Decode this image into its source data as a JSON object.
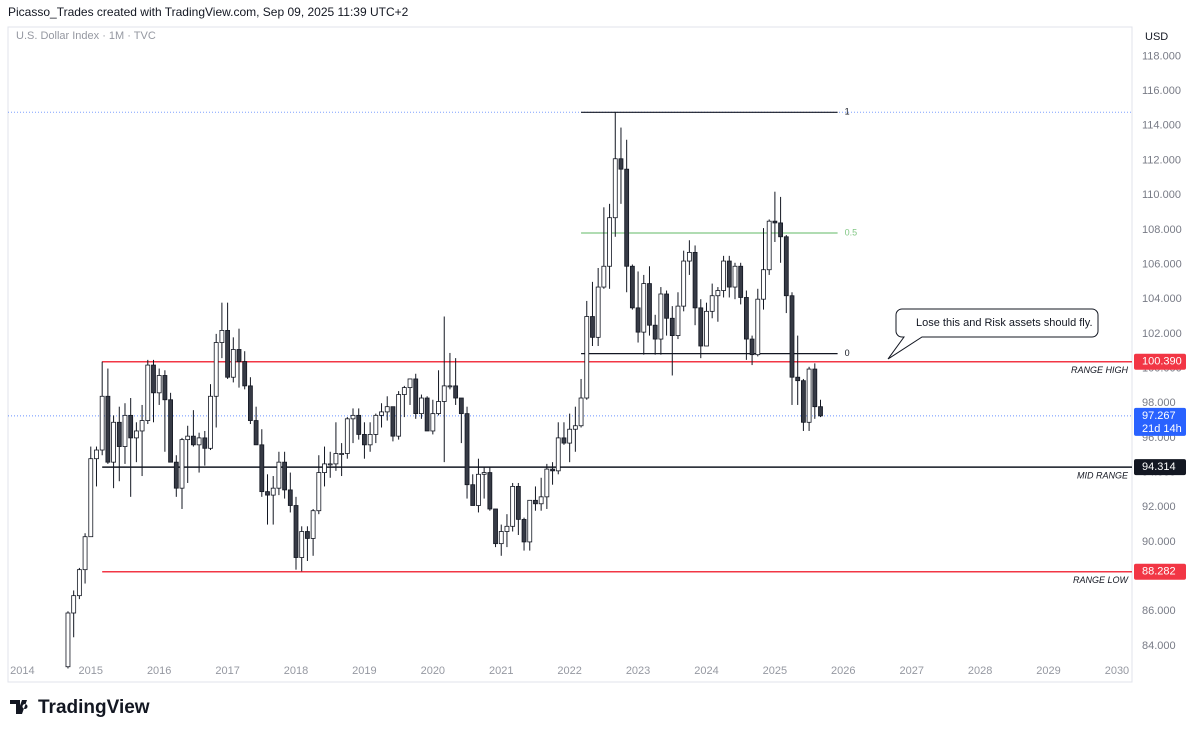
{
  "chart_data": {
    "type": "candlestick",
    "title": "Picasso_Trades created with TradingView.com, Sep 09, 2025 11:39 UTC+2",
    "subtitle": "U.S. Dollar Index · 1M · TVC",
    "currency": "USD",
    "brand": "TradingView",
    "x": [
      "2014-09",
      "2014-10",
      "2014-11",
      "2014-12",
      "2015-01",
      "2015-02",
      "2015-03",
      "2015-04",
      "2015-05",
      "2015-06",
      "2015-07",
      "2015-08",
      "2015-09",
      "2015-10",
      "2015-11",
      "2015-12",
      "2016-01",
      "2016-02",
      "2016-03",
      "2016-04",
      "2016-05",
      "2016-06",
      "2016-07",
      "2016-08",
      "2016-09",
      "2016-10",
      "2016-11",
      "2016-12",
      "2017-01",
      "2017-02",
      "2017-03",
      "2017-04",
      "2017-05",
      "2017-06",
      "2017-07",
      "2017-08",
      "2017-09",
      "2017-10",
      "2017-11",
      "2017-12",
      "2018-01",
      "2018-02",
      "2018-03",
      "2018-04",
      "2018-05",
      "2018-06",
      "2018-07",
      "2018-08",
      "2018-09",
      "2018-10",
      "2018-11",
      "2018-12",
      "2019-01",
      "2019-02",
      "2019-03",
      "2019-04",
      "2019-05",
      "2019-06",
      "2019-07",
      "2019-08",
      "2019-09",
      "2019-10",
      "2019-11",
      "2019-12",
      "2020-01",
      "2020-02",
      "2020-03",
      "2020-04",
      "2020-05",
      "2020-06",
      "2020-07",
      "2020-08",
      "2020-09",
      "2020-10",
      "2020-11",
      "2020-12",
      "2021-01",
      "2021-02",
      "2021-03",
      "2021-04",
      "2021-05",
      "2021-06",
      "2021-07",
      "2021-08",
      "2021-09",
      "2021-10",
      "2021-11",
      "2021-12",
      "2022-01",
      "2022-02",
      "2022-03",
      "2022-04",
      "2022-05",
      "2022-06",
      "2022-07",
      "2022-08",
      "2022-09",
      "2022-10",
      "2022-11",
      "2022-12",
      "2023-01",
      "2023-02",
      "2023-03",
      "2023-04",
      "2023-05",
      "2023-06",
      "2023-07",
      "2023-08",
      "2023-09",
      "2023-10",
      "2023-11",
      "2023-12",
      "2024-01",
      "2024-02",
      "2024-03",
      "2024-04",
      "2024-05",
      "2024-06",
      "2024-07",
      "2024-08",
      "2024-09",
      "2024-10",
      "2024-11",
      "2024-12",
      "2025-01",
      "2025-02",
      "2025-03",
      "2025-04",
      "2025-05",
      "2025-06",
      "2025-07",
      "2025-08",
      "2025-09"
    ],
    "open": [
      82.8,
      85.9,
      86.9,
      88.4,
      90.3,
      94.8,
      95.3,
      98.4,
      94.6,
      96.9,
      95.5,
      97.3,
      96.0,
      96.4,
      97.0,
      100.2,
      98.6,
      99.6,
      98.2,
      94.6,
      93.1,
      95.9,
      96.1,
      95.6,
      96.0,
      95.4,
      98.4,
      101.5,
      102.2,
      99.5,
      101.1,
      100.4,
      99.0,
      97.0,
      95.6,
      92.9,
      92.7,
      93.1,
      94.6,
      93.0,
      92.1,
      89.1,
      90.6,
      90.2,
      91.8,
      94.0,
      94.5,
      94.5,
      95.1,
      95.1,
      97.1,
      97.3,
      96.2,
      95.6,
      96.2,
      97.3,
      97.5,
      97.8,
      96.1,
      98.5,
      98.9,
      99.4,
      97.4,
      98.3,
      96.4,
      97.4,
      98.1,
      99.0,
      99.0,
      98.3,
      97.4,
      93.3,
      92.1,
      93.9,
      94.0,
      91.9,
      89.9,
      90.6,
      90.9,
      93.2,
      91.3,
      90.0,
      92.4,
      92.2,
      92.6,
      94.2,
      94.1,
      96.0,
      95.7,
      96.5,
      96.7,
      98.3,
      103.0,
      101.8,
      104.7,
      105.9,
      108.7,
      112.1,
      111.5,
      105.9,
      103.5,
      102.1,
      104.9,
      102.5,
      101.7,
      104.3,
      102.9,
      101.9,
      103.6,
      106.2,
      106.7,
      103.5,
      101.3,
      103.3,
      104.2,
      104.5,
      106.2,
      104.7,
      105.9,
      104.1,
      101.7,
      100.8,
      104.0,
      105.7,
      108.5,
      108.4,
      107.6,
      104.2,
      99.5,
      99.3,
      96.9,
      99.97,
      97.8
    ],
    "high": [
      86.0,
      87.2,
      88.5,
      90.5,
      95.5,
      95.5,
      100.4,
      100.0,
      97.3,
      97.8,
      98.0,
      98.3,
      96.9,
      97.9,
      100.5,
      100.5,
      100.0,
      99.9,
      98.6,
      95.0,
      96.0,
      96.7,
      97.6,
      96.3,
      96.4,
      99.1,
      102.0,
      103.8,
      103.8,
      101.8,
      102.3,
      101.0,
      99.5,
      97.8,
      96.5,
      93.9,
      93.8,
      95.2,
      95.2,
      94.0,
      92.6,
      90.9,
      90.9,
      91.9,
      95.0,
      95.5,
      95.2,
      96.9,
      95.7,
      97.2,
      97.7,
      97.7,
      96.9,
      96.9,
      97.4,
      98.0,
      98.4,
      97.8,
      98.7,
      99.0,
      99.4,
      99.7,
      98.5,
      98.4,
      98.2,
      99.9,
      103.0,
      100.9,
      100.6,
      98.3,
      97.8,
      93.9,
      94.8,
      94.3,
      94.3,
      91.9,
      91.0,
      91.6,
      93.4,
      93.4,
      91.4,
      92.4,
      93.2,
      93.7,
      94.5,
      94.6,
      96.9,
      96.9,
      97.4,
      97.8,
      99.4,
      103.9,
      105.0,
      105.8,
      109.3,
      109.5,
      114.8,
      113.9,
      113.2,
      106.0,
      105.6,
      105.4,
      105.9,
      103.1,
      104.7,
      104.5,
      103.6,
      104.4,
      106.8,
      107.4,
      107.1,
      104.0,
      103.8,
      104.9,
      104.7,
      106.5,
      106.5,
      106.1,
      106.1,
      104.5,
      101.9,
      104.6,
      108.1,
      108.6,
      110.2,
      109.9,
      107.7,
      104.4,
      101.9,
      99.4,
      100.1,
      100.3,
      98.2
    ],
    "low": [
      82.7,
      84.5,
      86.7,
      87.6,
      90.3,
      93.2,
      95.0,
      94.5,
      93.1,
      93.5,
      94.5,
      92.6,
      94.6,
      93.8,
      96.8,
      96.9,
      97.9,
      95.2,
      94.6,
      92.6,
      91.9,
      93.4,
      95.5,
      94.0,
      94.4,
      95.3,
      96.6,
      100.6,
      99.4,
      99.2,
      98.9,
      98.8,
      96.8,
      95.6,
      92.6,
      91.0,
      91.0,
      92.7,
      92.5,
      91.7,
      88.4,
      88.3,
      88.9,
      89.2,
      91.6,
      93.2,
      93.7,
      94.1,
      93.8,
      94.8,
      95.7,
      95.9,
      94.8,
      95.2,
      95.7,
      96.6,
      97.0,
      95.8,
      95.9,
      97.2,
      97.9,
      97.1,
      97.1,
      96.4,
      96.2,
      97.3,
      94.6,
      98.8,
      97.9,
      95.7,
      92.5,
      92.1,
      91.7,
      92.5,
      91.8,
      89.7,
      89.2,
      89.7,
      90.6,
      90.4,
      89.5,
      89.5,
      91.8,
      91.8,
      91.9,
      93.3,
      93.9,
      95.6,
      94.6,
      95.2,
      96.6,
      98.2,
      101.3,
      101.3,
      104.6,
      104.6,
      107.6,
      109.5,
      104.4,
      103.4,
      101.5,
      100.8,
      101.9,
      100.8,
      100.8,
      101.9,
      99.6,
      101.7,
      103.3,
      105.4,
      102.5,
      100.6,
      101.3,
      102.9,
      102.7,
      104.1,
      104.1,
      104.0,
      103.7,
      100.5,
      100.2,
      100.7,
      103.4,
      105.4,
      107.3,
      106.1,
      103.2,
      97.9,
      97.9,
      96.4,
      96.4,
      97.1,
      97.2
    ],
    "close": [
      85.9,
      86.9,
      88.4,
      90.3,
      94.8,
      95.3,
      98.4,
      94.6,
      96.9,
      95.5,
      97.3,
      96.0,
      96.4,
      97.0,
      100.2,
      98.6,
      99.6,
      98.2,
      94.6,
      93.1,
      95.9,
      96.1,
      95.6,
      96.0,
      95.4,
      98.4,
      101.5,
      102.2,
      99.5,
      101.1,
      100.4,
      99.0,
      97.0,
      95.6,
      92.9,
      92.7,
      93.1,
      94.6,
      93.0,
      92.1,
      89.1,
      90.6,
      90.2,
      91.8,
      94.0,
      94.5,
      94.5,
      95.1,
      95.1,
      97.1,
      97.3,
      96.2,
      95.6,
      96.2,
      97.3,
      97.5,
      97.8,
      96.1,
      98.5,
      98.9,
      99.4,
      97.4,
      98.3,
      96.4,
      97.4,
      98.1,
      99.0,
      99.0,
      98.3,
      97.4,
      93.3,
      92.1,
      93.9,
      94.0,
      91.9,
      89.9,
      90.6,
      90.9,
      93.2,
      91.3,
      90.0,
      92.4,
      92.2,
      92.6,
      94.2,
      94.1,
      96.0,
      95.7,
      96.5,
      96.7,
      98.3,
      103.0,
      101.8,
      104.7,
      105.9,
      108.7,
      112.1,
      111.5,
      105.9,
      103.5,
      102.1,
      104.9,
      102.5,
      101.7,
      104.3,
      102.9,
      101.9,
      103.6,
      106.2,
      106.7,
      103.5,
      101.3,
      103.3,
      104.2,
      104.5,
      106.2,
      104.7,
      105.9,
      104.1,
      101.7,
      100.8,
      104.0,
      105.7,
      108.5,
      108.4,
      107.6,
      104.2,
      99.5,
      99.3,
      96.9,
      99.97,
      97.8,
      97.27
    ],
    "up_color": "#ffffff",
    "down_color": "#363a45",
    "wick_color": "#131722",
    "xlim": [
      2013.79,
      2030.22
    ],
    "xticks": [
      2014,
      2015,
      2016,
      2017,
      2018,
      2019,
      2020,
      2021,
      2022,
      2023,
      2024,
      2025,
      2026,
      2027,
      2028,
      2029,
      2030
    ],
    "ylim": [
      81.92,
      119.7
    ],
    "yticks": [
      {
        "value": 84,
        "label": "84.000"
      },
      {
        "value": 86,
        "label": "86.000"
      },
      {
        "value": 88,
        "label": "88.000"
      },
      {
        "value": 90,
        "label": "90.000"
      },
      {
        "value": 92,
        "label": "92.000"
      },
      {
        "value": 94,
        "label": "94.000"
      },
      {
        "value": 96,
        "label": "96.000"
      },
      {
        "value": 98,
        "label": "98.000"
      },
      {
        "value": 100,
        "label": "100.000"
      },
      {
        "value": 102,
        "label": "102.000"
      },
      {
        "value": 104,
        "label": "104.000"
      },
      {
        "value": 106,
        "label": "106.000"
      },
      {
        "value": 108,
        "label": "108.000"
      },
      {
        "value": 110,
        "label": "110.000"
      },
      {
        "value": 112,
        "label": "112.000"
      },
      {
        "value": 114,
        "label": "114.000"
      },
      {
        "value": 116,
        "label": "116.000"
      },
      {
        "value": 118,
        "label": "118.000"
      }
    ],
    "grid": false,
    "levels": [
      {
        "name": "RANGE HIGH",
        "value": 100.39,
        "value_label": "100.390",
        "color": "#f23645",
        "start": "2015-03"
      },
      {
        "name": "MID RANGE",
        "value": 94.314,
        "value_label": "94.314",
        "color": "#131722",
        "start": "2015-03"
      },
      {
        "name": "RANGE LOW",
        "value": 88.282,
        "value_label": "88.282",
        "color": "#f23645",
        "start": "2015-03"
      }
    ],
    "last": {
      "value": 97.267,
      "value_label": "97.267",
      "countdown": "21d 14h",
      "color": "#2962ff"
    },
    "fib_levels": [
      1,
      0.5,
      0
    ],
    "fib_prices": [
      114.78,
      107.82,
      100.86
    ],
    "fib_colors": [
      "#131722",
      "#81c784",
      "#131722"
    ],
    "fib_start": "2022-03",
    "fib_end": "2025-12",
    "annotation": "Lose this and Risk assets should fly."
  }
}
